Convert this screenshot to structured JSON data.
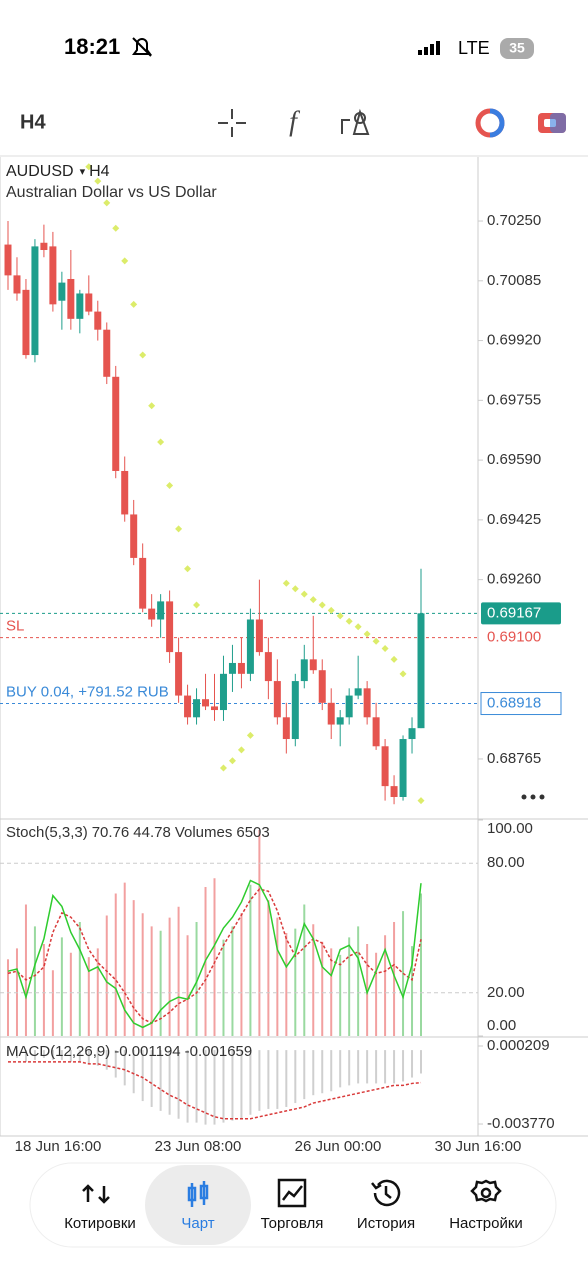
{
  "status_bar": {
    "time": "18:21",
    "network": "LTE",
    "battery": "35"
  },
  "toolbar": {
    "timeframe": "H4"
  },
  "chart_data": {
    "type": "candlestick",
    "symbol": "AUDUSD",
    "timeframe": "H4",
    "description": "Australian Dollar vs US Dollar",
    "up_color": "#1f9e8c",
    "down_color": "#e5544f",
    "open": [
      0.70185,
      0.701,
      0.7006,
      0.6988,
      0.7019,
      0.7018,
      0.7003,
      0.7009,
      0.6998,
      0.7005,
      0.7,
      0.6995,
      0.6982,
      0.6956,
      0.6944,
      0.6932,
      0.6918,
      0.6915,
      0.692,
      0.6906,
      0.6894,
      0.6888,
      0.6893,
      0.6891,
      0.689,
      0.69,
      0.6903,
      0.69,
      0.6915,
      0.6906,
      0.6898,
      0.6888,
      0.6882,
      0.6898,
      0.6904,
      0.6901,
      0.6892,
      0.6886,
      0.6888,
      0.6894,
      0.6896,
      0.6888,
      0.688,
      0.6869,
      0.6866,
      0.6882,
      0.6885
    ],
    "high": [
      0.7025,
      0.7015,
      0.7009,
      0.702,
      0.7024,
      0.7022,
      0.7011,
      0.7017,
      0.7006,
      0.701,
      0.7003,
      0.6997,
      0.6985,
      0.696,
      0.6948,
      0.6936,
      0.6922,
      0.6922,
      0.6923,
      0.691,
      0.6897,
      0.6896,
      0.69,
      0.69,
      0.6905,
      0.6908,
      0.691,
      0.6918,
      0.6926,
      0.691,
      0.6904,
      0.6892,
      0.69,
      0.6908,
      0.6916,
      0.6904,
      0.6896,
      0.689,
      0.6896,
      0.6905,
      0.6898,
      0.6892,
      0.6882,
      0.6872,
      0.6883,
      0.6888,
      0.6929
    ],
    "low": [
      0.7006,
      0.7003,
      0.6987,
      0.6986,
      0.7015,
      0.7,
      0.6995,
      0.6995,
      0.6994,
      0.6999,
      0.6992,
      0.698,
      0.6954,
      0.6942,
      0.693,
      0.6917,
      0.6913,
      0.691,
      0.6903,
      0.6892,
      0.6886,
      0.6886,
      0.689,
      0.6887,
      0.6887,
      0.6895,
      0.6896,
      0.6898,
      0.6905,
      0.6893,
      0.6886,
      0.6878,
      0.688,
      0.6896,
      0.69,
      0.689,
      0.6882,
      0.688,
      0.6886,
      0.6893,
      0.6886,
      0.6879,
      0.6865,
      0.6864,
      0.6865,
      0.6878,
      0.6885
    ],
    "close": [
      0.701,
      0.7005,
      0.6988,
      0.7018,
      0.7017,
      0.7002,
      0.7008,
      0.6998,
      0.7005,
      0.7,
      0.6995,
      0.6982,
      0.6956,
      0.6944,
      0.6932,
      0.6918,
      0.6915,
      0.692,
      0.6906,
      0.6894,
      0.6888,
      0.6893,
      0.6891,
      0.689,
      0.69,
      0.6903,
      0.69,
      0.6915,
      0.6906,
      0.6898,
      0.6888,
      0.6882,
      0.6898,
      0.6904,
      0.6901,
      0.6892,
      0.6886,
      0.6888,
      0.6894,
      0.6896,
      0.6888,
      0.688,
      0.6869,
      0.6866,
      0.6882,
      0.6885,
      0.69167
    ],
    "sar": {
      "color": "#dcec6a",
      "values": [
        null,
        null,
        null,
        null,
        null,
        null,
        null,
        null,
        null,
        0.704,
        0.7036,
        0.703,
        0.7023,
        0.7014,
        0.7002,
        0.6988,
        0.6974,
        0.6964,
        0.6952,
        0.694,
        0.6929,
        0.6919,
        null,
        null,
        0.6874,
        0.6876,
        0.6879,
        0.6883,
        null,
        null,
        null,
        0.6925,
        0.69235,
        0.6922,
        0.69205,
        0.6919,
        0.69175,
        0.6916,
        0.69145,
        0.6913,
        0.6911,
        0.6909,
        0.6907,
        0.6904,
        0.69,
        null,
        0.6865
      ]
    },
    "ylim": [
      0.68602,
      0.70424
    ],
    "yticks": [
      {
        "value": 0.7025,
        "label": "0.70250"
      },
      {
        "value": 0.70085,
        "label": "0.70085"
      },
      {
        "value": 0.6992,
        "label": "0.69920"
      },
      {
        "value": 0.69755,
        "label": "0.69755"
      },
      {
        "value": 0.6959,
        "label": "0.69590"
      },
      {
        "value": 0.69425,
        "label": "0.69425"
      },
      {
        "value": 0.6926,
        "label": "0.69260"
      },
      {
        "value": 0.68765,
        "label": "0.68765"
      }
    ],
    "price_lines": [
      {
        "value": 0.69167,
        "label": "0.69167",
        "color": "#1a9c8a",
        "kind": "filled"
      },
      {
        "value": 0.691,
        "label": "0.69100",
        "color": "#e5544f",
        "kind": "plain",
        "tag": "SL"
      },
      {
        "value": 0.68918,
        "label": "0.68918",
        "color": "#3a8ad8",
        "kind": "outlined",
        "tag": "BUY 0.04, +791.52 RUB"
      }
    ],
    "stoch": {
      "name": "Stoch(5,3,3)",
      "k_color": "#2ecc2e",
      "d_color": "#d93a3a",
      "k": [
        30,
        31,
        18,
        33,
        45,
        65,
        60,
        48,
        40,
        30,
        32,
        25,
        22,
        12,
        6,
        4,
        6,
        12,
        16,
        18,
        17,
        25,
        35,
        42,
        50,
        55,
        62,
        72,
        70,
        62,
        40,
        32,
        38,
        52,
        45,
        32,
        28,
        40,
        42,
        36,
        20,
        30,
        40,
        28,
        18,
        33,
        70.76
      ],
      "d": [
        29,
        30,
        26,
        28,
        32,
        48,
        57,
        55,
        50,
        40,
        34,
        30,
        26,
        20,
        13,
        8,
        6,
        8,
        11,
        15,
        17,
        20,
        26,
        34,
        42,
        49,
        56,
        63,
        68,
        67,
        58,
        45,
        37,
        41,
        45,
        43,
        35,
        33,
        37,
        39,
        33,
        29,
        30,
        33,
        29,
        26,
        44.78
      ],
      "ylim": [
        0,
        100
      ],
      "yticks": [
        {
          "value": 100,
          "label": "100.00"
        },
        {
          "value": 80,
          "label": "80.00"
        },
        {
          "value": 20,
          "label": "20.00"
        },
        {
          "value": 0,
          "label": "0.00"
        }
      ]
    },
    "volumes": {
      "name": "Volumes",
      "values": [
        3500,
        4000,
        6000,
        5000,
        4200,
        3000,
        4500,
        3800,
        5200,
        3600,
        4000,
        5500,
        6500,
        7000,
        6200,
        5600,
        5000,
        4800,
        5400,
        5900,
        4600,
        5200,
        6800,
        7200,
        4400,
        5000,
        5600,
        6900,
        9400,
        6200,
        5400,
        4700,
        4900,
        6000,
        5100,
        4300,
        4000,
        3700,
        4500,
        5000,
        4200,
        3800,
        4600,
        5200,
        5700,
        4100,
        6503
      ]
    },
    "macd": {
      "name": "MACD(12,26,9)",
      "hist_color": "#cfcfcf",
      "signal_color": "#d93a3a",
      "main": [
        -0.0003,
        -0.0004,
        -0.0006,
        -0.0005,
        -0.0004,
        -0.0005,
        -0.0005,
        -0.0006,
        -0.0006,
        -0.0007,
        -0.0008,
        -0.001,
        -0.0014,
        -0.0018,
        -0.0022,
        -0.0026,
        -0.0029,
        -0.0031,
        -0.0033,
        -0.0035,
        -0.0037,
        -0.0037,
        -0.0038,
        -0.0038,
        -0.0037,
        -0.0036,
        -0.0035,
        -0.0033,
        -0.0031,
        -0.003,
        -0.003,
        -0.0029,
        -0.0027,
        -0.0025,
        -0.0023,
        -0.0022,
        -0.0021,
        -0.0019,
        -0.0018,
        -0.0017,
        -0.0017,
        -0.0017,
        -0.0017,
        -0.0017,
        -0.0016,
        -0.0014,
        -0.001194
      ],
      "signal": [
        -0.0006,
        -0.0006,
        -0.0006,
        -0.0006,
        -0.0006,
        -0.0006,
        -0.0006,
        -0.0006,
        -0.0006,
        -0.0007,
        -0.0007,
        -0.0008,
        -0.0009,
        -0.001,
        -0.0012,
        -0.0014,
        -0.0017,
        -0.002,
        -0.0023,
        -0.0025,
        -0.0028,
        -0.003,
        -0.0032,
        -0.0034,
        -0.0035,
        -0.0035,
        -0.0035,
        -0.0035,
        -0.0034,
        -0.0033,
        -0.0032,
        -0.0031,
        -0.003,
        -0.0029,
        -0.0027,
        -0.0026,
        -0.0025,
        -0.0024,
        -0.0023,
        -0.0022,
        -0.0021,
        -0.002,
        -0.0019,
        -0.0018,
        -0.0018,
        -0.0017,
        -0.001659
      ],
      "ylim": [
        -0.004279,
        0.000617
      ],
      "yticks": [
        {
          "value": 0.000209,
          "label": "0.000209"
        },
        {
          "value": -0.00377,
          "label": "-0.003770"
        }
      ]
    },
    "time_labels": [
      "18 Jun 16:00",
      "23 Jun 08:00",
      "26 Jun 00:00",
      "30 Jun 16:00"
    ]
  },
  "nav": {
    "items": [
      "Котировки",
      "Чарт",
      "Торговля",
      "История",
      "Настройки"
    ],
    "active": 1
  }
}
